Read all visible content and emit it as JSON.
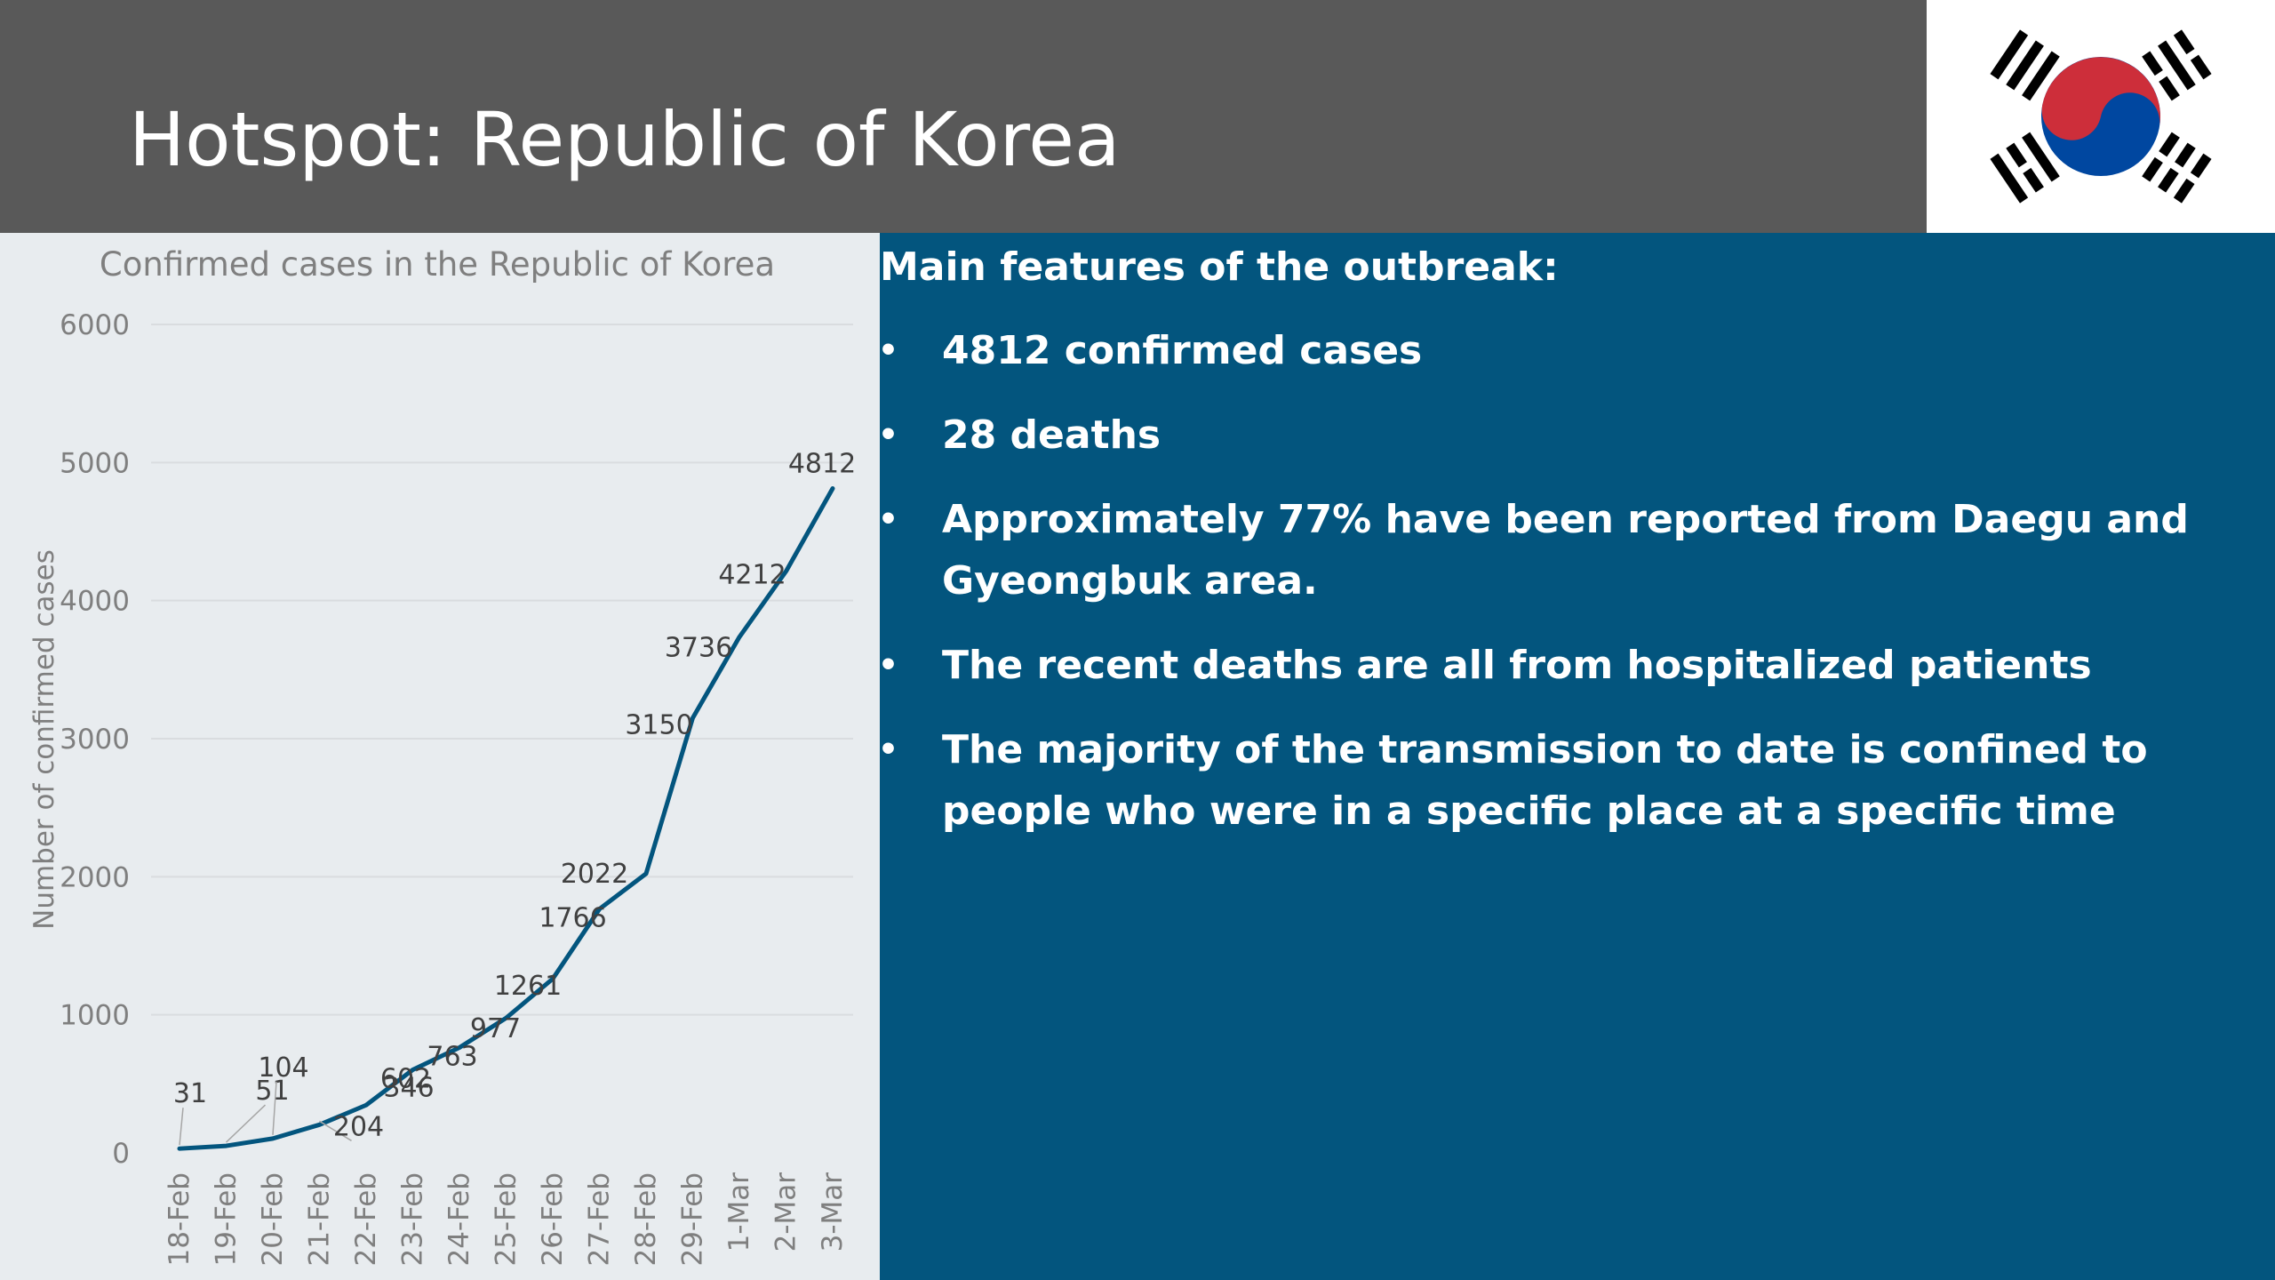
{
  "slide": {
    "title": "Hotspot: Republic of Korea"
  },
  "flag": {
    "icon": "korean-flag-icon",
    "colors": {
      "red": "#cd2e3a",
      "blue": "#0047a0",
      "black": "#000000",
      "background": "#ffffff"
    }
  },
  "info": {
    "heading": "Main features of the outbreak:",
    "bullet_glyph": "•",
    "bullets": [
      "4812 confirmed cases",
      "28 deaths",
      "Approximately 77% have been reported from Daegu and Gyeongbuk area.",
      "The recent deaths are all from hospitalized patients",
      "The majority of the transmission to date is confined to people who were in a specific place at a specific time"
    ]
  },
  "colors": {
    "header_bg": "#595959",
    "chart_bg": "#e8ecef",
    "info_bg": "#03557e",
    "line": "#03557e",
    "axis_text": "#7f7f7f",
    "label_text": "#404040"
  },
  "chart_data": {
    "type": "line",
    "title": "Confirmed cases in the Republic of Korea",
    "xlabel": "",
    "ylabel": "Number of confirmed cases",
    "categories": [
      "18-Feb",
      "19-Feb",
      "20-Feb",
      "21-Feb",
      "22-Feb",
      "23-Feb",
      "24-Feb",
      "25-Feb",
      "26-Feb",
      "27-Feb",
      "28-Feb",
      "29-Feb",
      "1-Mar",
      "2-Mar",
      "3-Mar"
    ],
    "values": [
      31,
      51,
      104,
      204,
      346,
      602,
      763,
      977,
      1261,
      1766,
      2022,
      3150,
      3736,
      4212,
      4812
    ],
    "ylim": [
      0,
      6000
    ],
    "yticks": [
      0,
      1000,
      2000,
      3000,
      4000,
      5000,
      6000
    ],
    "grid": true,
    "legend": "none",
    "data_labels": true
  }
}
